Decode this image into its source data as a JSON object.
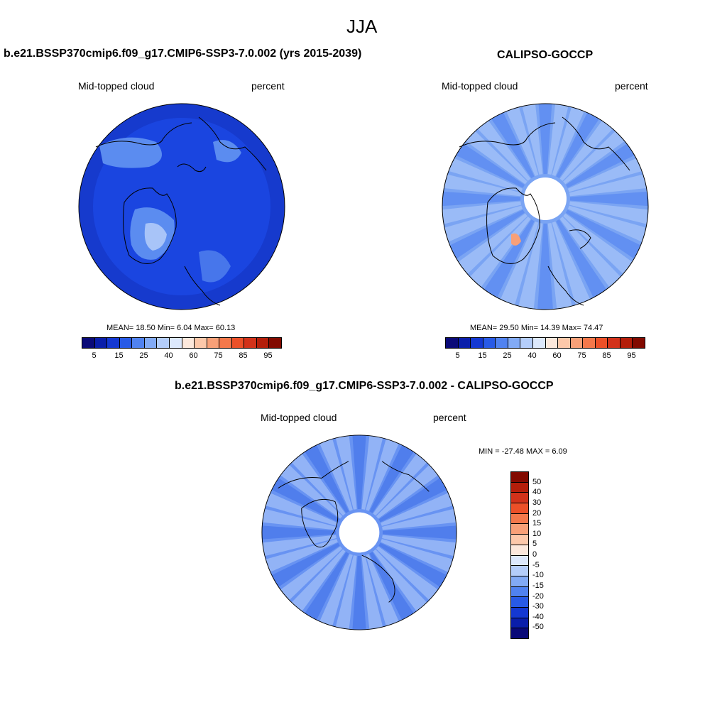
{
  "figure": {
    "season": "JJA",
    "diff_title": "b.e21.BSSP370cmip6.f09_g17.CMIP6-SSP3-7.0.002 - CALIPSO-GOCCP"
  },
  "panels": {
    "model": {
      "title": "b.e21.BSSP370cmip6.f09_g17.CMIP6-SSP3-7.0.002 (yrs 2015-2039)",
      "left_label": "Mid-topped cloud",
      "right_label": "percent",
      "stats": "MEAN=  18.50  Min=   6.04  Max=  60.13"
    },
    "obs": {
      "title": "CALIPSO-GOCCP",
      "left_label": "Mid-topped cloud",
      "right_label": "percent",
      "stats": "MEAN=  29.50  Min=  14.39  Max=  74.47"
    },
    "diff": {
      "left_label": "Mid-topped cloud",
      "right_label": "percent",
      "stats": "MIN = -27.48 MAX =   6.09"
    }
  },
  "colorbars": {
    "abs_colors": [
      "#0a0a78",
      "#0a1eaa",
      "#1438d2",
      "#285ae6",
      "#5082f0",
      "#82aaf5",
      "#b4cdfa",
      "#dce8fc",
      "#fce8dc",
      "#fcc8aa",
      "#f8a078",
      "#f4784b",
      "#ec5028",
      "#d2321a",
      "#b41e0a",
      "#820a00"
    ],
    "abs_labels": [
      "5",
      "15",
      "25",
      "40",
      "60",
      "75",
      "85",
      "95"
    ],
    "diff_colors": [
      "#820a00",
      "#b41e0a",
      "#d2321a",
      "#ec5028",
      "#f4784b",
      "#f8a078",
      "#fcc8aa",
      "#fce8dc",
      "#dce8fc",
      "#b4cdfa",
      "#82aaf5",
      "#5082f0",
      "#285ae6",
      "#1438d2",
      "#0a1eaa",
      "#0a0a78"
    ],
    "diff_labels": [
      "50",
      "40",
      "30",
      "20",
      "15",
      "10",
      "5",
      "0",
      "-5",
      "-10",
      "-15",
      "-20",
      "-30",
      "-40",
      "-50"
    ]
  },
  "map_colors": {
    "model_base": "#1a45e0",
    "model_outer": "#1537c8",
    "model_light": "#5b8cf0",
    "model_lighter": "#a8c4f8",
    "obs_base": "#7aa4f3",
    "obs_light": "#b4cdfa",
    "obs_dark": "#4e7ff0",
    "diff_base": "#6893f2",
    "diff_light": "#b4cdfa",
    "diff_dark": "#3d6ee8",
    "warm": "#f8a078"
  }
}
